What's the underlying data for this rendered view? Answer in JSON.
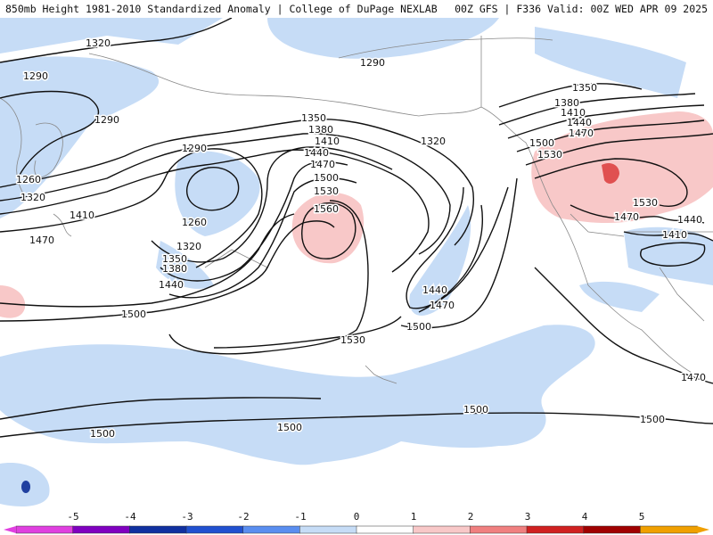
{
  "header": {
    "title_left": "850mb Height 1981-2010 Standardized Anomaly | College of DuPage NEXLAB",
    "title_right": "00Z GFS | F336 Valid: 00Z WED APR 09 2025"
  },
  "contour_labels": [
    "1320",
    "1290",
    "1290",
    "1320",
    "1350",
    "1380",
    "1410",
    "1320",
    "1290",
    "1350",
    "1380",
    "1410",
    "1440",
    "1470",
    "1500",
    "1530",
    "1560",
    "1260",
    "1320",
    "1350",
    "1380",
    "1440",
    "1500",
    "1530",
    "1410",
    "1470",
    "1260",
    "1320",
    "1290",
    "1500",
    "1530",
    "1440",
    "1470",
    "1500",
    "1350",
    "1380",
    "1410",
    "1440",
    "1470",
    "1500",
    "1530",
    "1470",
    "1440",
    "1410",
    "1470",
    "1500",
    "1500",
    "1500",
    "1500"
  ],
  "legend": {
    "labels": [
      "-5",
      "-4",
      "-3",
      "-2",
      "-1",
      "0",
      "1",
      "2",
      "3",
      "4",
      "5"
    ],
    "colors": [
      "#e040e0",
      "#8000c0",
      "#1030a0",
      "#2050d0",
      "#5a8ef0",
      "#c6dcf6",
      "#ffffff",
      "#f8c8c8",
      "#f08080",
      "#d02020",
      "#a00000",
      "#f0a000"
    ]
  },
  "colors": {
    "negative_anomaly": "#c6dcf6",
    "positive_anomaly": "#f8c8c8",
    "strong_positive": "#e05050",
    "strong_negative": "#2040a0",
    "contour": "#111111",
    "coastline": "#888888"
  }
}
